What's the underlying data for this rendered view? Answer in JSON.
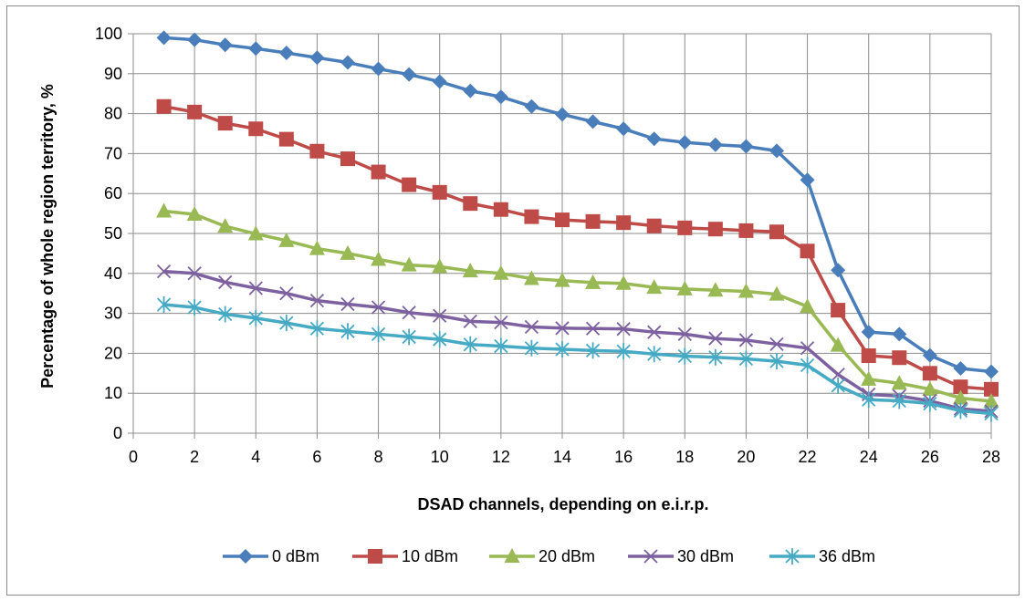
{
  "chart_data": {
    "type": "line",
    "title": "",
    "xlabel": "DSAD channels, depending on e.i.r.p.",
    "ylabel": "Percentage of whole region territory, %",
    "xlim": [
      0,
      28
    ],
    "ylim": [
      0,
      100
    ],
    "x_ticks": [
      0,
      2,
      4,
      6,
      8,
      10,
      12,
      14,
      16,
      18,
      20,
      22,
      24,
      26,
      28
    ],
    "y_ticks": [
      0,
      10,
      20,
      30,
      40,
      50,
      60,
      70,
      80,
      90,
      100
    ],
    "grid": true,
    "legend_position": "bottom",
    "x": [
      1,
      2,
      3,
      4,
      5,
      6,
      7,
      8,
      9,
      10,
      11,
      12,
      13,
      14,
      15,
      16,
      17,
      18,
      19,
      20,
      21,
      22,
      23,
      24,
      25,
      26,
      27,
      28
    ],
    "series": [
      {
        "name": "0 dBm",
        "color": "#4a7ebb",
        "marker": "diamond",
        "values": [
          99,
          98.5,
          97.2,
          96.3,
          95.2,
          94,
          92.8,
          91.2,
          89.8,
          88,
          85.7,
          84.2,
          81.8,
          79.8,
          78,
          76.2,
          73.7,
          72.8,
          72.2,
          71.8,
          70.7,
          63.4,
          40.8,
          25.3,
          24.8,
          19.5,
          16.2,
          15.4
        ]
      },
      {
        "name": "10 dBm",
        "color": "#be4b48",
        "marker": "square",
        "values": [
          81.8,
          80.4,
          77.6,
          76.2,
          73.6,
          70.6,
          68.7,
          65.4,
          62.2,
          60.3,
          57.5,
          56,
          54.2,
          53.4,
          53,
          52.7,
          51.9,
          51.4,
          51.1,
          50.7,
          50.4,
          45.6,
          30.8,
          19.4,
          18.9,
          15,
          11.6,
          11
        ]
      },
      {
        "name": "20 dBm",
        "color": "#98b954",
        "marker": "triangle",
        "values": [
          55.6,
          54.8,
          51.8,
          49.9,
          48.2,
          46.2,
          45,
          43.5,
          42.1,
          41.7,
          40.6,
          40,
          38.7,
          38.2,
          37.7,
          37.5,
          36.5,
          36.1,
          35.8,
          35.5,
          34.8,
          31.7,
          22,
          13.5,
          12.5,
          11,
          8.8,
          8
        ]
      },
      {
        "name": "30 dBm",
        "color": "#7d60a0",
        "marker": "x",
        "values": [
          40.5,
          40,
          37.8,
          36.3,
          35,
          33.2,
          32.3,
          31.5,
          30.2,
          29.4,
          28,
          27.7,
          26.6,
          26.3,
          26.2,
          26.1,
          25.3,
          24.8,
          23.7,
          23.3,
          22.3,
          21.3,
          14.7,
          9.7,
          9.3,
          8.1,
          6.1,
          5.5
        ]
      },
      {
        "name": "36 dBm",
        "color": "#46aac5",
        "marker": "asterisk",
        "values": [
          32.2,
          31.5,
          29.8,
          28.8,
          27.6,
          26.2,
          25.5,
          24.8,
          24.1,
          23.5,
          22.2,
          21.8,
          21.3,
          21,
          20.7,
          20.5,
          19.8,
          19.3,
          19,
          18.6,
          18,
          17,
          11.9,
          8.4,
          8.1,
          7.4,
          5.6,
          4.9
        ]
      }
    ]
  }
}
